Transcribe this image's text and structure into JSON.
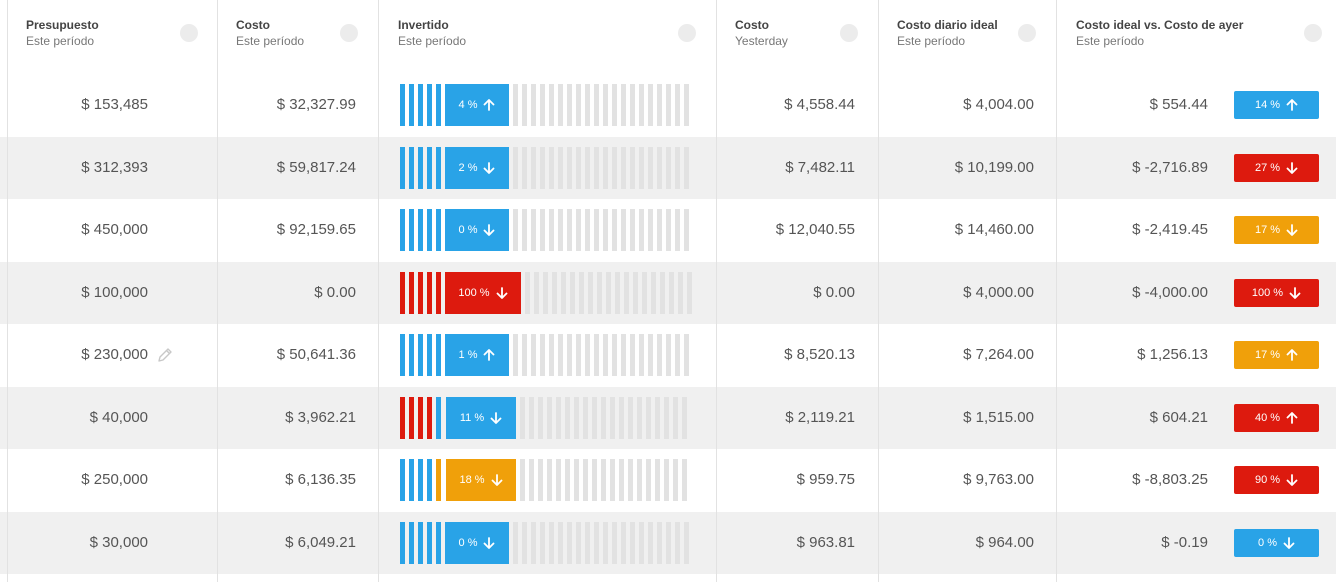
{
  "colors": {
    "blue": "#29a3e7",
    "red": "#dd1a0e",
    "orange": "#f0a00a",
    "grey_segment": "#e2e2e2"
  },
  "headers": [
    {
      "title": "Presupuesto",
      "sub": "Este período"
    },
    {
      "title": "Costo",
      "sub": "Este período"
    },
    {
      "title": "Invertido",
      "sub": "Este período"
    },
    {
      "title": "Costo",
      "sub": "Yesterday"
    },
    {
      "title": "Costo diario ideal",
      "sub": "Este período"
    },
    {
      "title": "Costo ideal vs. Costo de ayer",
      "sub": "Este período"
    }
  ],
  "rows": [
    {
      "budget": "$ 153,485",
      "cost": "$ 32,327.99",
      "invested_label": "4 %",
      "invested_filled_segments": 8,
      "invested_color": "blue",
      "invested_arrow": "up",
      "yesterday": "$ 4,558.44",
      "ideal": "$ 4,004.00",
      "diff": "$ 554.44",
      "badge_label": "14 %",
      "badge_color": "blue",
      "badge_arrow": "up",
      "editable": false
    },
    {
      "budget": "$ 312,393",
      "cost": "$ 59,817.24",
      "invested_label": "2 %",
      "invested_filled_segments": 8,
      "invested_color": "blue",
      "invested_arrow": "down",
      "yesterday": "$ 7,482.11",
      "ideal": "$ 10,199.00",
      "diff": "$ -2,716.89",
      "badge_label": "27 %",
      "badge_color": "red",
      "badge_arrow": "down",
      "editable": false
    },
    {
      "budget": "$ 450,000",
      "cost": "$ 92,159.65",
      "invested_label": "0 %",
      "invested_filled_segments": 8,
      "invested_color": "blue",
      "invested_arrow": "down",
      "yesterday": "$ 12,040.55",
      "ideal": "$ 14,460.00",
      "diff": "$ -2,419.45",
      "badge_label": "17 %",
      "badge_color": "orange",
      "badge_arrow": "down",
      "editable": false
    },
    {
      "budget": "$ 100,000",
      "cost": "$ 0.00",
      "invested_label": "100 %",
      "invested_filled_segments": 8,
      "invested_color": "red",
      "invested_arrow": "down",
      "yesterday": "$ 0.00",
      "ideal": "$ 4,000.00",
      "diff": "$ -4,000.00",
      "badge_label": "100 %",
      "badge_color": "red",
      "badge_arrow": "down",
      "editable": false
    },
    {
      "budget": "$ 230,000",
      "cost": "$ 50,641.36",
      "invested_label": "1 %",
      "invested_filled_segments": 8,
      "invested_color": "blue",
      "invested_arrow": "up",
      "yesterday": "$ 8,520.13",
      "ideal": "$ 7,264.00",
      "diff": "$ 1,256.13",
      "badge_label": "17 %",
      "badge_color": "orange",
      "badge_arrow": "up",
      "editable": true
    },
    {
      "budget": "$ 40,000",
      "cost": "$ 3,962.21",
      "invested_label": "11 %",
      "invested_filled_segments": 8,
      "invested_color": "red",
      "invested_arrow": "down",
      "chip_color": "blue",
      "yesterday": "$ 2,119.21",
      "ideal": "$ 1,515.00",
      "diff": "$ 604.21",
      "badge_label": "40 %",
      "badge_color": "red",
      "badge_arrow": "up",
      "editable": false
    },
    {
      "budget": "$ 250,000",
      "cost": "$ 6,136.35",
      "invested_label": "18 %",
      "invested_filled_segments": 8,
      "invested_color": "blue",
      "invested_arrow": "down",
      "chip_color": "orange",
      "yesterday": "$ 959.75",
      "ideal": "$ 9,763.00",
      "diff": "$ -8,803.25",
      "badge_label": "90 %",
      "badge_color": "red",
      "badge_arrow": "down",
      "editable": false
    },
    {
      "budget": "$ 30,000",
      "cost": "$ 6,049.21",
      "invested_label": "0 %",
      "invested_filled_segments": 8,
      "invested_color": "blue",
      "invested_arrow": "down",
      "yesterday": "$ 963.81",
      "ideal": "$ 964.00",
      "diff": "$ -0.19",
      "badge_label": "0 %",
      "badge_color": "blue",
      "badge_arrow": "down",
      "editable": false
    }
  ]
}
